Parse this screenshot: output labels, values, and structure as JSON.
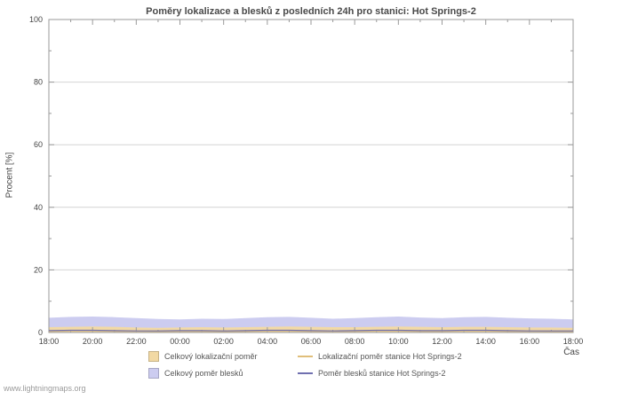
{
  "watermark": "www.lightningmaps.org",
  "chart_data": {
    "type": "area",
    "title": "Poměry lokalizace a blesků z posledních 24h pro stanici: Hot Springs-2",
    "xlabel": "Čas",
    "ylabel": "Procent  [%]",
    "ylim": [
      0,
      100
    ],
    "y_major_step": 20,
    "y_minor_step": 10,
    "grid": "horizontal",
    "legend_position": "bottom",
    "x_tick_labels": [
      "18:00",
      "20:00",
      "22:00",
      "00:00",
      "02:00",
      "04:00",
      "06:00",
      "08:00",
      "10:00",
      "12:00",
      "14:00",
      "16:00",
      "18:00"
    ],
    "series": [
      {
        "id": "total_strokes",
        "name": "Celkový poměr blesků",
        "kind": "area",
        "color": "#ccccf0",
        "values": [
          4.7,
          5.0,
          5.1,
          4.9,
          4.6,
          4.3,
          4.2,
          4.4,
          4.3,
          4.6,
          4.9,
          5.0,
          4.7,
          4.4,
          4.6,
          4.9,
          5.1,
          4.8,
          4.6,
          4.9,
          5.0,
          4.7,
          4.5,
          4.4,
          4.2
        ]
      },
      {
        "id": "total_loc",
        "name": "Celkový lokalizační poměr",
        "kind": "area",
        "color": "#f2d9a4",
        "values": [
          1.7,
          1.8,
          1.9,
          1.8,
          1.6,
          1.5,
          1.6,
          1.7,
          1.6,
          1.7,
          1.8,
          1.9,
          1.8,
          1.7,
          1.7,
          1.8,
          1.9,
          1.8,
          1.7,
          1.8,
          1.8,
          1.7,
          1.6,
          1.6,
          1.5
        ]
      },
      {
        "id": "station_loc",
        "name": "Lokalizační poměr stanice Hot Springs-2",
        "kind": "line",
        "color": "#e0be7a",
        "values": [
          0.4,
          0.5,
          0.5,
          0.4,
          0.4,
          0.3,
          0.4,
          0.4,
          0.3,
          0.4,
          0.5,
          0.5,
          0.4,
          0.4,
          0.4,
          0.5,
          0.5,
          0.4,
          0.4,
          0.5,
          0.5,
          0.4,
          0.4,
          0.3,
          0.3
        ]
      },
      {
        "id": "station_strokes",
        "name": "Poměr blesků stanice Hot Springs-2",
        "kind": "line",
        "color": "#7070b0",
        "values": [
          0.6,
          0.7,
          0.7,
          0.6,
          0.5,
          0.5,
          0.6,
          0.6,
          0.5,
          0.6,
          0.7,
          0.7,
          0.6,
          0.5,
          0.6,
          0.7,
          0.7,
          0.6,
          0.6,
          0.7,
          0.7,
          0.6,
          0.5,
          0.5,
          0.5
        ]
      }
    ],
    "legend_order": [
      [
        "total_loc",
        "station_loc"
      ],
      [
        "total_strokes",
        "station_strokes"
      ]
    ]
  }
}
